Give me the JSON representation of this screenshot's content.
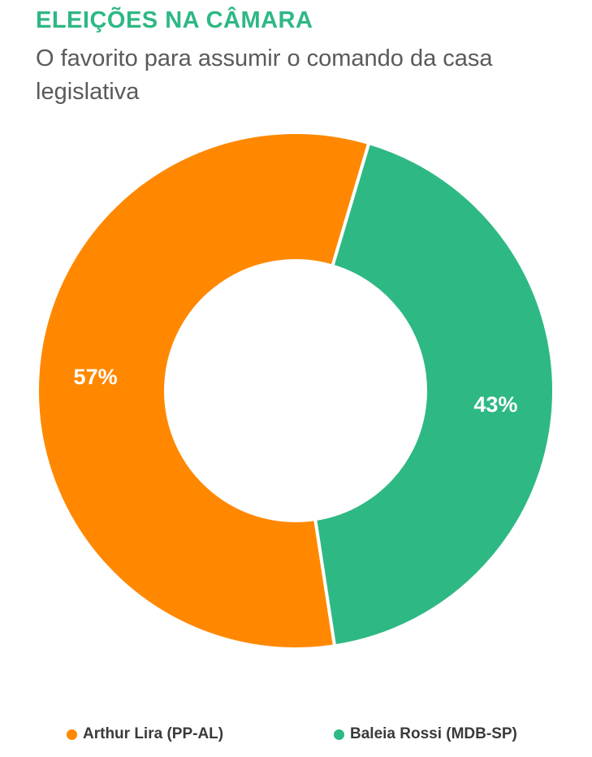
{
  "chart_data": {
    "type": "pie",
    "variant": "donut",
    "title": "ELEIÇÕES NA CÂMARA",
    "subtitle": "O favorito para assumir o comando da casa legislativa",
    "categories": [
      "Arthur Lira (PP-AL)",
      "Baleia Rossi (MDB-SP)"
    ],
    "values": [
      57,
      43
    ],
    "labels": [
      "57%",
      "43%"
    ],
    "colors": [
      "#FF8800",
      "#2EB884"
    ],
    "legend_position": "bottom"
  },
  "theme": {
    "title_color": "#2EB884",
    "subtitle_color": "#5a5a5a"
  }
}
